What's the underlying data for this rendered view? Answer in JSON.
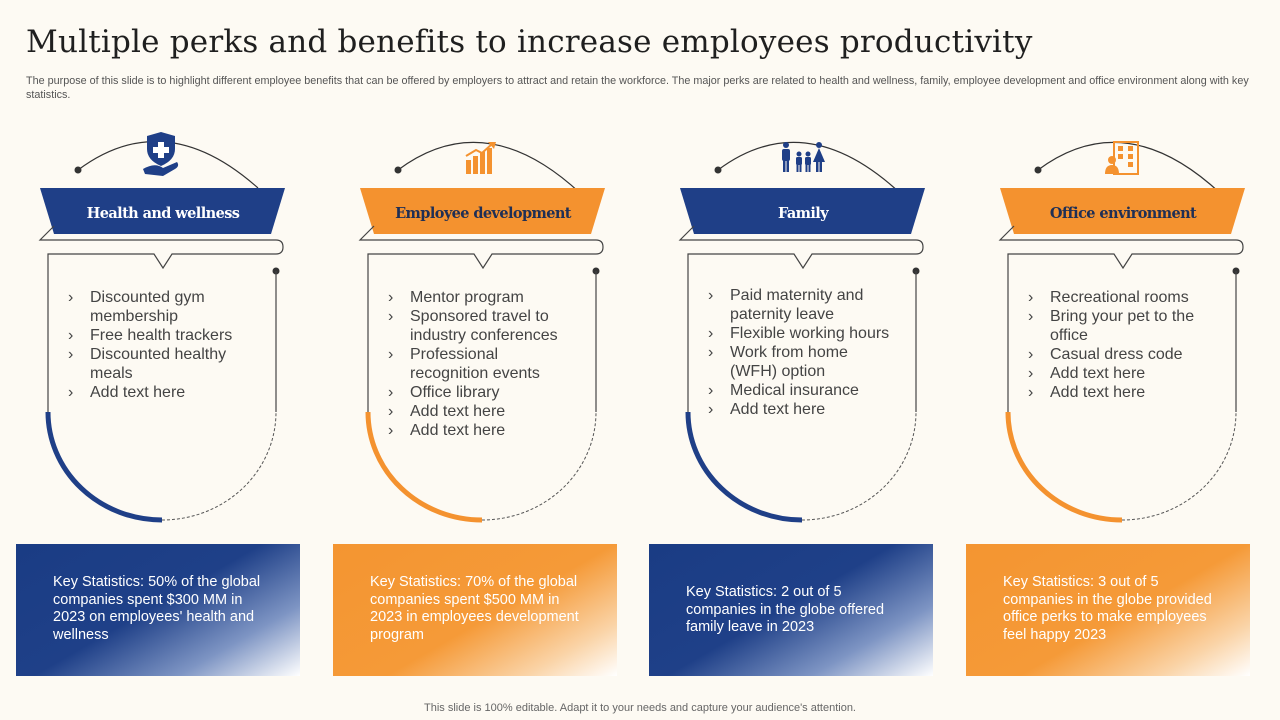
{
  "title": "Multiple perks and benefits to increase employees productivity",
  "subtitle": "The purpose of this slide is to highlight different employee benefits that can be offered by employers to attract and retain the workforce. The major perks are related to health and wellness, family, employee development and office environment along with key statistics.",
  "colors": {
    "blue": "#1f3f87",
    "orange": "#f4922f",
    "background": "#fdfaf3"
  },
  "categories": [
    {
      "header": "Health and wellness",
      "icon": "health-shield-icon",
      "theme": "blue",
      "items": [
        "Discounted gym membership",
        "Free health trackers",
        "Discounted healthy  meals",
        "Add text here"
      ],
      "stat": "Key Statistics: 50% of the global companies spent $300 MM  in 2023 on employees' health and wellness"
    },
    {
      "header": "Employee development",
      "icon": "growth-chart-icon",
      "theme": "orange",
      "items": [
        "Mentor program",
        "Sponsored travel to industry conferences",
        "Professional recognition events",
        "Office library",
        "Add text here",
        "Add text here"
      ],
      "stat": "Key Statistics: 70% of the global companies spent $500 MM  in 2023 in employees development program"
    },
    {
      "header": "Family",
      "icon": "family-icon",
      "theme": "blue",
      "items": [
        "Paid maternity and paternity leave",
        "Flexible working hours",
        "Work from home (WFH) option",
        "Medical insurance",
        "Add text here"
      ],
      "stat": "Key Statistics: 2 out of 5 companies in the globe offered family leave in 2023"
    },
    {
      "header": "Office environment",
      "icon": "office-building-icon",
      "theme": "orange",
      "items": [
        "Recreational rooms",
        "Bring your pet to the office",
        "Casual dress code",
        "Add text here",
        "Add text here"
      ],
      "stat": "Key Statistics: 3 out of 5 companies in the globe provided office perks to make employees feel happy 2023"
    }
  ],
  "footer": "This slide is 100% editable. Adapt it to your needs and capture your audience's attention."
}
